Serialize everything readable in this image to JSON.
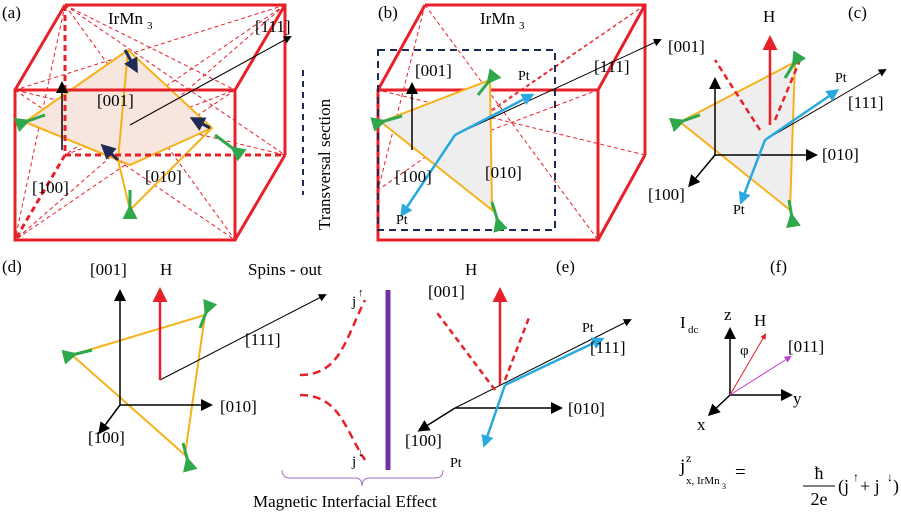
{
  "panels": {
    "a": {
      "label": "(a)",
      "material": "IrMn",
      "material_sub": "3",
      "dir_111": "[111]",
      "dir_001": "[001]",
      "dir_100": "[100]",
      "dir_010": "[010]"
    },
    "b": {
      "label": "(b)",
      "material": "IrMn",
      "material_sub": "3",
      "dir_111": "[111]",
      "dir_001": "[001]",
      "dir_100": "[100]",
      "dir_010": "[010]",
      "pt_top": "Pt",
      "pt_bottom": "Pt",
      "section": "Transversal section"
    },
    "c": {
      "label": "(c)",
      "field": "H",
      "dir_001": "[001]",
      "dir_111": "[111]",
      "dir_010": "[010]",
      "dir_100": "[100]",
      "pt_top": "Pt",
      "pt_bottom": "Pt"
    },
    "d": {
      "label": "(d)",
      "field": "H",
      "title": "Spins - out",
      "dir_001": "[001]",
      "dir_111": "[111]",
      "dir_010": "[010]",
      "dir_100": "[100]",
      "spin_up": "j",
      "spin_up_sup": "↑",
      "spin_down": "j",
      "spin_down_sup": "↓"
    },
    "e": {
      "label": "(e)",
      "field": "H",
      "dir_001": "[001]",
      "dir_111": "[111]",
      "dir_010": "[010]",
      "dir_100": "[100]",
      "pt_top": "Pt",
      "pt_bottom": "Pt"
    },
    "f": {
      "label": "(f)",
      "current": "I",
      "current_sub": "dc",
      "z": "z",
      "y": "y",
      "x": "x",
      "field": "H",
      "dir_011": "[011]",
      "angle": "φ",
      "formula": {
        "j": "j",
        "sup": "z",
        "sub": "x, IrMn",
        "sub_sub": "3",
        "equals": "=",
        "numerator": "ħ",
        "denominator": "2e",
        "open": "(j",
        "up": "↑",
        "plus": "+ j",
        "down": "↓",
        "close": ")"
      }
    }
  },
  "caption": "Magnetic Interfacial Effect"
}
